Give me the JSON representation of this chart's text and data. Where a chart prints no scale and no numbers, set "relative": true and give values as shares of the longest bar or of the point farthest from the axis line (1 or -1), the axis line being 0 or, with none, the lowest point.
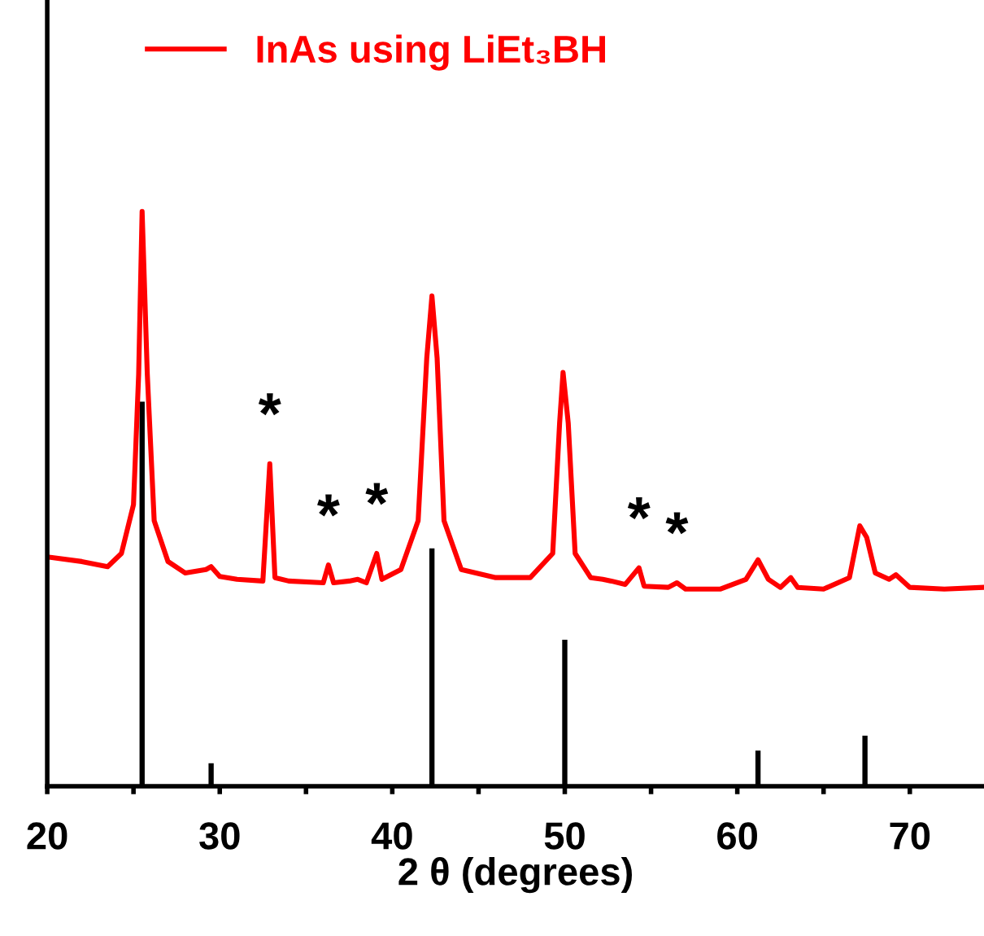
{
  "chart_data": {
    "type": "line",
    "relative": true,
    "xlabel": "2 θ (degrees)",
    "xlim": [
      20,
      74.3
    ],
    "xticks": [
      20,
      {
        "value": 25,
        "label": null
      },
      30,
      {
        "value": 35,
        "label": null
      },
      40,
      {
        "value": 45,
        "label": null
      },
      50,
      {
        "value": 55,
        "label": null
      },
      60,
      {
        "value": 65,
        "label": null
      },
      70
    ],
    "tick_labels": "x",
    "legend": "top left",
    "grid": false,
    "series": [
      {
        "name": "InAs using LiEt₃BH",
        "color": "#ff0000",
        "x": [
          20,
          22,
          23.5,
          24.3,
          25,
          25.3,
          25.5,
          25.8,
          26.2,
          27,
          28,
          29.2,
          29.5,
          30,
          31,
          32.5,
          32.9,
          33.2,
          34,
          36,
          36.3,
          36.6,
          37.5,
          38,
          38.5,
          39.1,
          39.4,
          40.5,
          41.5,
          42,
          42.3,
          42.6,
          43,
          44,
          46,
          48,
          49.3,
          49.7,
          49.9,
          50.2,
          50.6,
          51.5,
          52.2,
          52.7,
          53.5,
          54.3,
          54.6,
          56,
          56.5,
          57,
          59,
          60.5,
          61.2,
          61.8,
          62.5,
          63.1,
          63.5,
          65,
          66.5,
          67.1,
          67.5,
          68,
          68.8,
          69.2,
          70,
          72,
          74.3
        ],
        "values": [
          0.399,
          0.391,
          0.382,
          0.405,
          0.49,
          0.717,
          1,
          0.717,
          0.462,
          0.391,
          0.371,
          0.377,
          0.382,
          0.365,
          0.36,
          0.357,
          0.561,
          0.363,
          0.357,
          0.354,
          0.385,
          0.354,
          0.357,
          0.36,
          0.354,
          0.405,
          0.36,
          0.377,
          0.462,
          0.745,
          0.853,
          0.745,
          0.462,
          0.377,
          0.363,
          0.363,
          0.405,
          0.632,
          0.72,
          0.632,
          0.405,
          0.363,
          0.36,
          0.357,
          0.351,
          0.38,
          0.348,
          0.346,
          0.354,
          0.343,
          0.343,
          0.36,
          0.394,
          0.36,
          0.346,
          0.363,
          0.346,
          0.343,
          0.363,
          0.453,
          0.433,
          0.371,
          0.36,
          0.368,
          0.346,
          0.343,
          0.346
        ]
      },
      {
        "type": "bar",
        "color": "#000000",
        "x": [
          25.5,
          29.5,
          42.3,
          50.0,
          61.2,
          67.4
        ],
        "values": [
          0.669,
          0.04,
          0.414,
          0.255,
          0.062,
          0.088
        ]
      }
    ],
    "annotations": [
      {
        "text": "*",
        "x": 32.9,
        "y": 0.561
      },
      {
        "text": "*",
        "x": 36.3,
        "y": 0.385
      },
      {
        "text": "*",
        "x": 39.1,
        "y": 0.405
      },
      {
        "text": "*",
        "x": 54.3,
        "y": 0.38
      },
      {
        "text": "*",
        "x": 56.5,
        "y": 0.354
      }
    ]
  }
}
